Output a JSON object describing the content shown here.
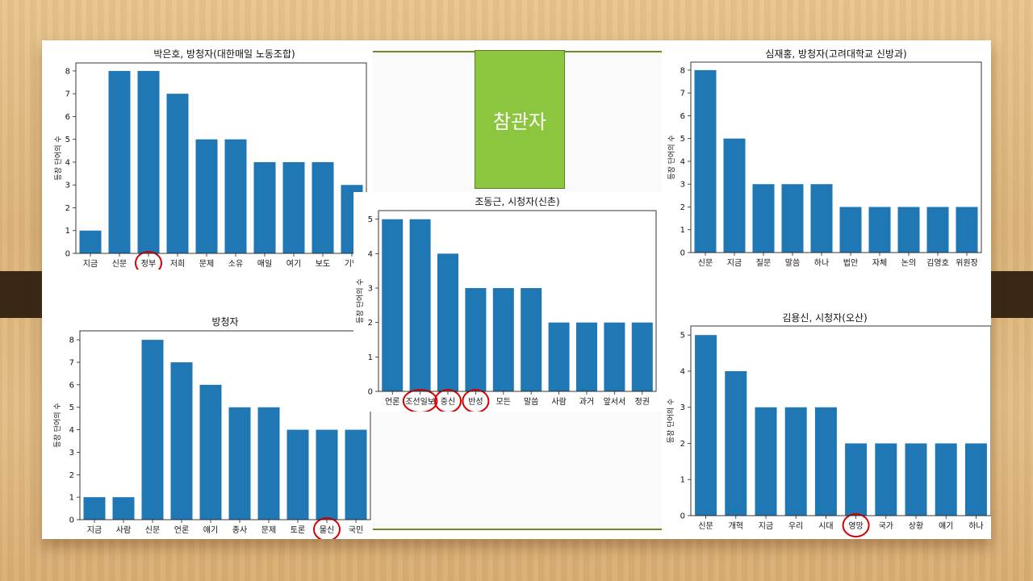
{
  "center_badge": {
    "label": "참관자",
    "color": "#8cc63f"
  },
  "chart_data": [
    {
      "type": "bar",
      "title": "박은호, 방청자(대한매일 노동조합)",
      "ylabel": "등장 단어의 수",
      "categories": [
        "지금",
        "신문",
        "정부",
        "저희",
        "문제",
        "소유",
        "매일",
        "여기",
        "보도",
        "기업"
      ],
      "values": [
        1,
        8,
        8,
        7,
        5,
        5,
        4,
        4,
        4,
        3
      ],
      "ylim": [
        0,
        8.35
      ],
      "yticks": [
        0,
        1,
        2,
        3,
        4,
        5,
        6,
        7,
        8
      ],
      "highlighted": [
        "정부"
      ],
      "color": "#1f77b4"
    },
    {
      "type": "bar",
      "title": "방청자",
      "ylabel": "등장 단어의 수",
      "categories": [
        "지금",
        "사람",
        "신문",
        "언론",
        "얘기",
        "종사",
        "문제",
        "토론",
        "물신",
        "국민"
      ],
      "values": [
        1,
        1,
        8,
        7,
        6,
        5,
        5,
        4,
        4,
        4
      ],
      "ylim": [
        0,
        8.4
      ],
      "yticks": [
        0,
        1,
        2,
        3,
        4,
        5,
        6,
        7,
        8
      ],
      "highlighted": [
        "물신"
      ],
      "color": "#1f77b4"
    },
    {
      "type": "bar",
      "title": "조동근, 시청자(신촌)",
      "ylabel": "등장 단어의 수",
      "categories": [
        "언론",
        "조선일보",
        "중신",
        "반성",
        "모든",
        "말씀",
        "사람",
        "과거",
        "앞서서",
        "정권"
      ],
      "values": [
        5,
        5,
        4,
        3,
        3,
        3,
        2,
        2,
        2,
        2
      ],
      "ylim": [
        0,
        5.25
      ],
      "yticks": [
        0,
        1,
        2,
        3,
        4,
        5
      ],
      "highlighted": [
        "조선일보",
        "중신",
        "반성"
      ],
      "color": "#1f77b4"
    },
    {
      "type": "bar",
      "title": "심재홍, 방청자(고려대학교 신방과)",
      "ylabel": "등장 단어의 수",
      "categories": [
        "신문",
        "지금",
        "질문",
        "말씀",
        "하나",
        "법안",
        "자체",
        "논의",
        "김영호",
        "위원장"
      ],
      "values": [
        8,
        5,
        3,
        3,
        3,
        2,
        2,
        2,
        2,
        2
      ],
      "ylim": [
        0,
        8.35
      ],
      "yticks": [
        0,
        1,
        2,
        3,
        4,
        5,
        6,
        7,
        8
      ],
      "highlighted": [],
      "color": "#1f77b4"
    },
    {
      "type": "bar",
      "title": "김용신, 시청자(오산)",
      "ylabel": "등장 단어의 수",
      "categories": [
        "신문",
        "개혁",
        "지금",
        "우리",
        "시대",
        "영망",
        "국가",
        "상황",
        "얘기",
        "하나"
      ],
      "values": [
        5,
        4,
        3,
        3,
        3,
        2,
        2,
        2,
        2,
        2
      ],
      "ylim": [
        0,
        5.25
      ],
      "yticks": [
        0,
        1,
        2,
        3,
        4,
        5
      ],
      "highlighted": [
        "영망"
      ],
      "color": "#1f77b4"
    }
  ]
}
